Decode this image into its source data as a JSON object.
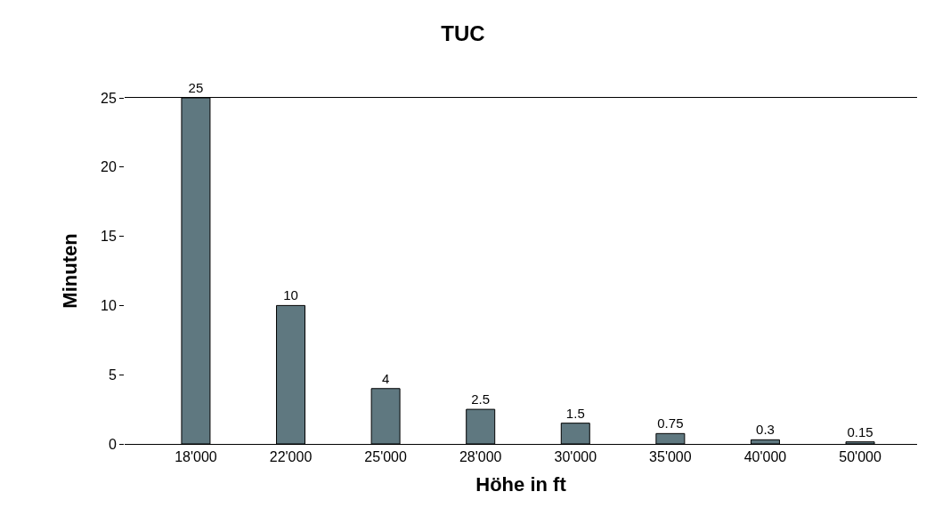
{
  "chart_data": {
    "type": "bar",
    "title": "TUC",
    "xlabel": "Höhe in ft",
    "ylabel": "Minuten",
    "categories": [
      "18'000",
      "22'000",
      "25'000",
      "28'000",
      "30'000",
      "35'000",
      "40'000",
      "50'000"
    ],
    "values": [
      25,
      10,
      4,
      2.5,
      1.5,
      0.75,
      0.3,
      0.15
    ],
    "color": "#5f7880",
    "ylim": [
      0,
      25
    ],
    "yticks": [
      0,
      5,
      10,
      15,
      20,
      25
    ],
    "data_labels": true,
    "grid": false,
    "legend": false
  }
}
